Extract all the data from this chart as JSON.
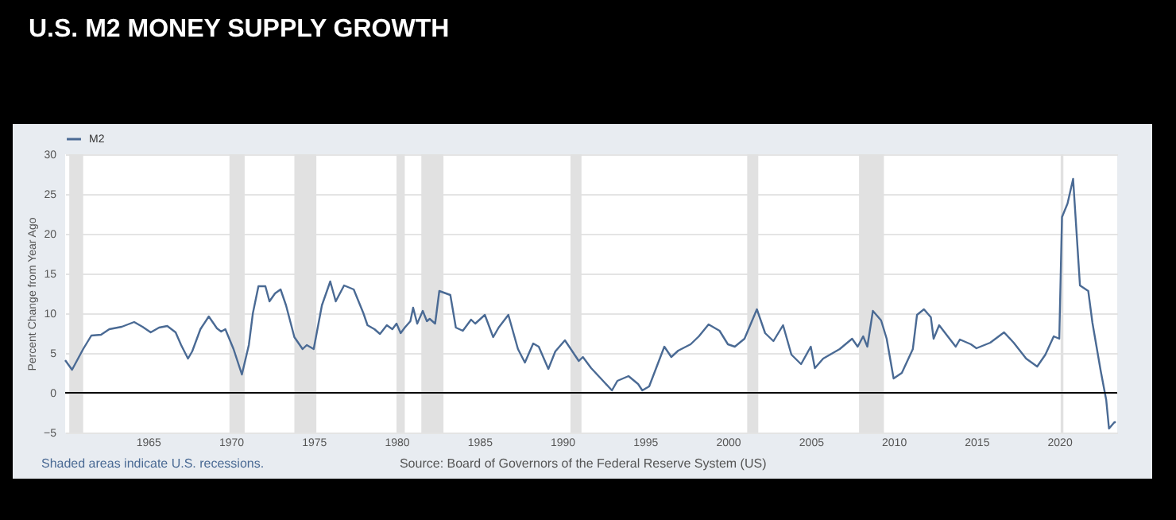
{
  "chart_data": {
    "type": "line",
    "title": "U.S. M2 MONEY SUPPLY GROWTH",
    "ylabel": "Percent Change from Year Ago",
    "annotations": [
      "Shaded areas indicate U.S. recessions.",
      "Source: Board of Governors of the Federal Reserve System (US)"
    ],
    "x": [
      "1960-01",
      "1960-06",
      "1961-02",
      "1961-08",
      "1962-03",
      "1962-09",
      "1963-06",
      "1964-03",
      "1964-09",
      "1965-03",
      "1965-09",
      "1966-03",
      "1966-09",
      "1967-01",
      "1967-06",
      "1967-09",
      "1968-03",
      "1968-09",
      "1969-03",
      "1969-06",
      "1969-09",
      "1970-03",
      "1970-09",
      "1971-02",
      "1971-05",
      "1971-09",
      "1972-02",
      "1972-05",
      "1972-09",
      "1973-01",
      "1973-05",
      "1973-11",
      "1974-05",
      "1974-08",
      "1975-01",
      "1975-07",
      "1976-01",
      "1976-05",
      "1976-11",
      "1977-06",
      "1978-01",
      "1978-04",
      "1978-09",
      "1979-01",
      "1979-06",
      "1979-10",
      "1980-01",
      "1980-04",
      "1980-07",
      "1980-11",
      "1981-01",
      "1981-04",
      "1981-08",
      "1981-11",
      "1982-01",
      "1982-05",
      "1982-08",
      "1983-04",
      "1983-08",
      "1984-01",
      "1984-07",
      "1984-10",
      "1985-05",
      "1985-11",
      "1986-03",
      "1986-10",
      "1987-05",
      "1987-10",
      "1988-04",
      "1988-08",
      "1989-03",
      "1989-08",
      "1990-03",
      "1991-01",
      "1991-04",
      "1991-10",
      "1992-05",
      "1993-01",
      "1993-05",
      "1994-01",
      "1994-08",
      "1994-11",
      "1995-04",
      "1996-03",
      "1996-08",
      "1997-01",
      "1997-10",
      "1998-04",
      "1998-11",
      "1999-07",
      "2000-01",
      "2000-06",
      "2001-01",
      "2001-10",
      "2002-04",
      "2002-10",
      "2003-05",
      "2003-11",
      "2004-06",
      "2005-01",
      "2005-04",
      "2005-10",
      "2006-10",
      "2007-07",
      "2007-11",
      "2008-03",
      "2008-06",
      "2008-10",
      "2009-04",
      "2009-08",
      "2010-01",
      "2010-07",
      "2011-03",
      "2011-06",
      "2011-11",
      "2012-04",
      "2012-06",
      "2012-10",
      "2013-10",
      "2014-01",
      "2014-09",
      "2015-01",
      "2015-11",
      "2016-09",
      "2017-04",
      "2018-01",
      "2018-09",
      "2019-03",
      "2019-09",
      "2020-01",
      "2020-03",
      "2020-07",
      "2020-11",
      "2021-04",
      "2021-10",
      "2022-01",
      "2022-07",
      "2022-11",
      "2023-01",
      "2023-05",
      "2023-06"
    ],
    "series": [
      {
        "name": "M2",
        "color": "#4a6a94",
        "values": [
          4.1,
          2.9,
          5.5,
          7.2,
          7.3,
          8.0,
          8.3,
          8.9,
          8.3,
          7.6,
          8.2,
          8.4,
          7.6,
          6.0,
          4.3,
          5.2,
          8.0,
          9.6,
          8.1,
          7.7,
          8.0,
          5.5,
          2.3,
          6.0,
          10.0,
          13.4,
          13.4,
          11.5,
          12.5,
          13.0,
          11.0,
          7.0,
          5.5,
          6.0,
          5.5,
          11.0,
          14.0,
          11.5,
          13.5,
          13.0,
          10.0,
          8.5,
          8.0,
          7.4,
          8.5,
          8.0,
          8.7,
          7.5,
          8.2,
          9.0,
          10.7,
          8.7,
          10.3,
          9.0,
          9.3,
          8.7,
          12.8,
          12.3,
          8.2,
          7.8,
          9.2,
          8.7,
          9.8,
          7.0,
          8.2,
          9.8,
          5.5,
          3.8,
          6.2,
          5.8,
          3.0,
          5.2,
          6.6,
          4.0,
          4.5,
          3.1,
          1.8,
          0.3,
          1.5,
          2.1,
          1.1,
          0.3,
          0.8,
          5.8,
          4.5,
          5.3,
          6.1,
          7.1,
          8.6,
          7.8,
          6.1,
          5.8,
          6.8,
          10.5,
          7.5,
          6.5,
          8.5,
          4.8,
          3.6,
          5.8,
          3.1,
          4.3,
          5.5,
          6.8,
          5.8,
          7.1,
          5.8,
          10.3,
          9.1,
          6.8,
          1.8,
          2.5,
          5.5,
          9.8,
          10.5,
          9.5,
          6.8,
          8.5,
          5.8,
          6.7,
          6.1,
          5.6,
          6.3,
          7.6,
          6.3,
          4.3,
          3.3,
          4.8,
          7.1,
          6.8,
          22.1,
          23.8,
          26.9,
          13.5,
          12.8,
          8.8,
          2.8,
          -0.9,
          -4.5,
          -3.7,
          -3.7
        ]
      }
    ],
    "xlim": [
      "1960-01",
      "2023-07"
    ],
    "xticks": [
      "1965",
      "1970",
      "1975",
      "1980",
      "1985",
      "1990",
      "1995",
      "2000",
      "2005",
      "2010",
      "2015",
      "2020"
    ],
    "ylim": [
      -5,
      30
    ],
    "yticks": [
      -5,
      0,
      5,
      10,
      15,
      20,
      25,
      30
    ],
    "ref_lines": [
      {
        "axis": "y",
        "value": 0,
        "color": "#000000"
      }
    ],
    "bands": [
      {
        "axis": "x",
        "from": "1960-04",
        "to": "1961-02",
        "color": "#e1e1e1"
      },
      {
        "axis": "x",
        "from": "1969-12",
        "to": "1970-11",
        "color": "#e1e1e1"
      },
      {
        "axis": "x",
        "from": "1973-11",
        "to": "1975-03",
        "color": "#e1e1e1"
      },
      {
        "axis": "x",
        "from": "1980-01",
        "to": "1980-07",
        "color": "#e1e1e1"
      },
      {
        "axis": "x",
        "from": "1981-07",
        "to": "1982-11",
        "color": "#e1e1e1"
      },
      {
        "axis": "x",
        "from": "1990-07",
        "to": "1991-03",
        "color": "#e1e1e1"
      },
      {
        "axis": "x",
        "from": "2001-03",
        "to": "2001-11",
        "color": "#e1e1e1"
      },
      {
        "axis": "x",
        "from": "2007-12",
        "to": "2009-06",
        "color": "#e1e1e1"
      },
      {
        "axis": "x",
        "from": "2020-02",
        "to": "2020-04",
        "color": "#e1e1e1"
      }
    ],
    "grid": "y",
    "legend": "top left"
  }
}
